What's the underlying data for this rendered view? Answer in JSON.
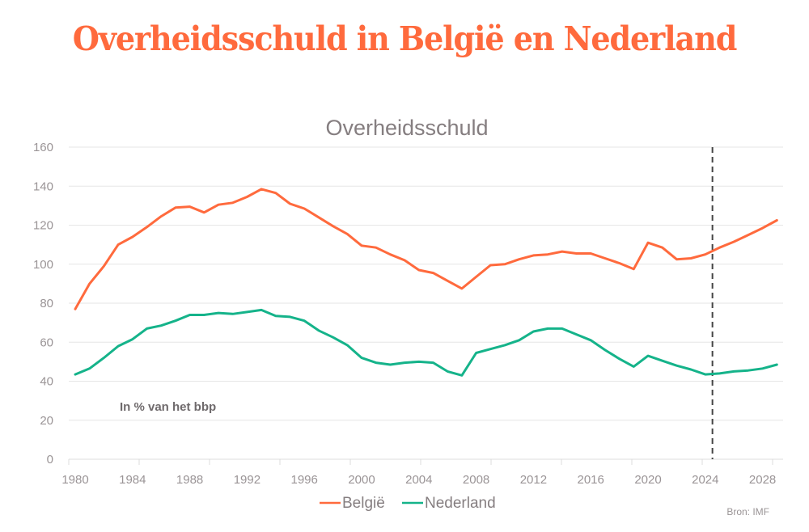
{
  "page_title": "Overheidsschuld in België en Nederland",
  "source": "Bron: IMF",
  "colors": {
    "title": "#ff6a3d",
    "belgie": "#ff6a3d",
    "nederland": "#15b38a",
    "grid": "#e6e6e6",
    "marker": "#444444"
  },
  "chart_data": {
    "type": "line",
    "title": "Overheidsschuld",
    "annotation": "In % van het bbp",
    "xlabel": "",
    "ylabel": "",
    "ylim": [
      0,
      160
    ],
    "xlim": [
      1980,
      2029
    ],
    "grid": true,
    "legend_position": "bottom-center",
    "yticks": [
      0,
      20,
      40,
      60,
      80,
      100,
      120,
      140,
      160
    ],
    "ytick_labels": [
      "0",
      "20",
      "40",
      "60",
      "80",
      "100",
      "120",
      "140",
      "160"
    ],
    "xticks": [
      1980,
      1984,
      1988,
      1992,
      1996,
      2000,
      2004,
      2008,
      2012,
      2016,
      2020,
      2024,
      2028
    ],
    "xtick_labels": [
      "1980",
      "1984",
      "1988",
      "1992",
      "1996",
      "2000",
      "2004",
      "2008",
      "2012",
      "2016",
      "2020",
      "2024",
      "2028"
    ],
    "forecast_marker_x": 2024.5,
    "x": [
      1980,
      1981,
      1982,
      1983,
      1984,
      1985,
      1986,
      1987,
      1988,
      1989,
      1990,
      1991,
      1992,
      1993,
      1994,
      1995,
      1996,
      1997,
      1998,
      1999,
      2000,
      2001,
      2002,
      2003,
      2004,
      2005,
      2006,
      2007,
      2008,
      2009,
      2010,
      2011,
      2012,
      2013,
      2014,
      2015,
      2016,
      2017,
      2018,
      2019,
      2020,
      2021,
      2022,
      2023,
      2024,
      2025,
      2026,
      2027,
      2028,
      2029
    ],
    "series": [
      {
        "name": "België",
        "color": "#ff6a3d",
        "values": [
          77,
          90,
          99,
          110,
          114,
          119,
          124.5,
          129,
          129.5,
          126.5,
          130.5,
          131.5,
          134.5,
          138.5,
          136.5,
          131,
          128.5,
          124,
          119.5,
          115.5,
          109.5,
          108.5,
          105,
          102,
          97,
          95.5,
          91.5,
          87.5,
          93.5,
          99.5,
          100,
          102.5,
          104.5,
          105,
          106.5,
          105.5,
          105.5,
          103,
          100.5,
          97.5,
          111,
          108.5,
          102.5,
          103,
          105,
          108.5,
          111.5,
          115,
          118.5,
          122.5
        ]
      },
      {
        "name": "Nederland",
        "color": "#15b38a",
        "values": [
          43.5,
          46.5,
          52,
          58,
          61.5,
          67,
          68.5,
          71,
          74,
          74,
          75,
          74.5,
          75.5,
          76.5,
          73.5,
          73,
          71,
          66,
          62.5,
          58.5,
          52,
          49.5,
          48.5,
          49.5,
          50,
          49.5,
          45,
          43,
          54.5,
          56.5,
          58.5,
          61,
          65.5,
          67,
          67,
          64,
          61,
          56,
          51.5,
          47.5,
          53,
          50.5,
          48,
          46,
          43.5,
          44,
          45,
          45.5,
          46.5,
          48.5
        ]
      }
    ]
  }
}
